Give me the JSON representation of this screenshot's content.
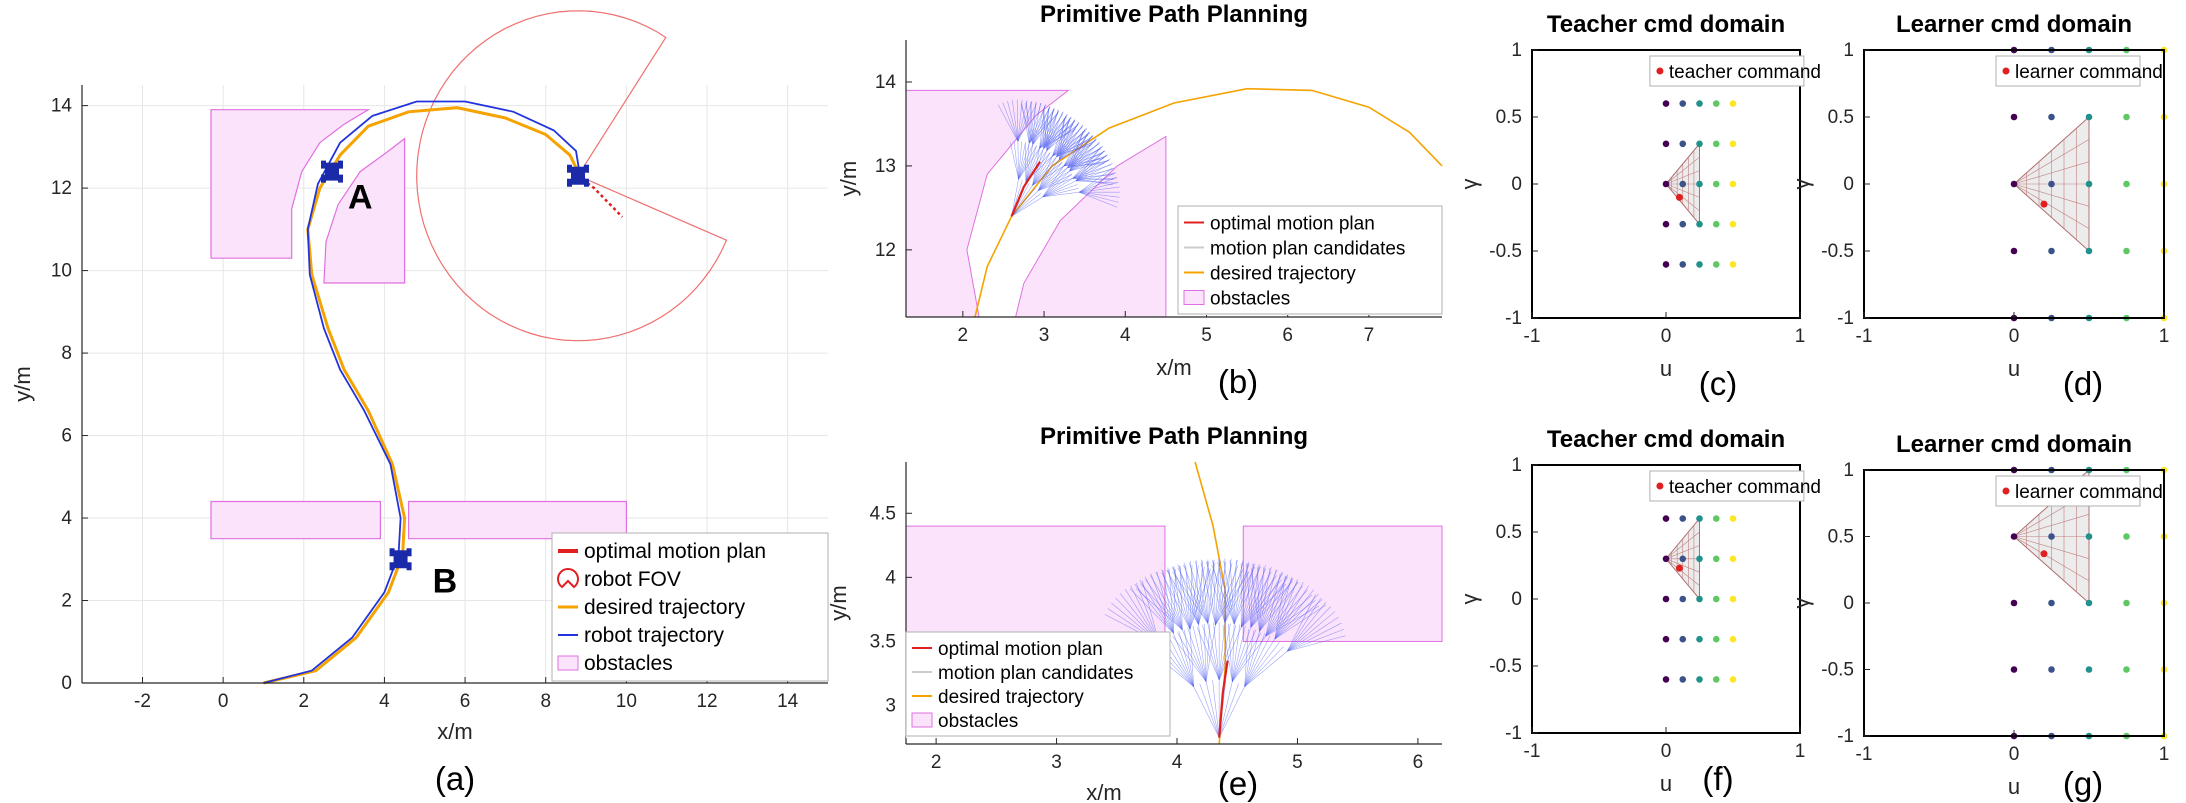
{
  "colors": {
    "obstacle_fill": "#fbe3fb",
    "obstacle_edge": "#e070e0",
    "desired": "#f5a300",
    "robot": "#2233dd",
    "optimal": "#e02020",
    "fov": "#f07070",
    "candidate": "#4d5bf0",
    "grid": "#e6e6e6",
    "axis": "#262626"
  },
  "chart_data": [
    {
      "id": "a",
      "type": "line",
      "caption": "(a)",
      "title": "",
      "xlabel": "x/m",
      "ylabel": "y/m",
      "xlim": [
        -3.5,
        15
      ],
      "ylim": [
        0,
        14.5
      ],
      "xticks": [
        "-2",
        "0",
        "2",
        "4",
        "6",
        "8",
        "10",
        "12",
        "14"
      ],
      "xtick_values": [
        -2,
        0,
        2,
        4,
        6,
        8,
        10,
        12,
        14
      ],
      "yticks": [
        "0",
        "2",
        "4",
        "6",
        "8",
        "10",
        "12",
        "14"
      ],
      "ytick_values": [
        0,
        2,
        4,
        6,
        8,
        10,
        12,
        14
      ],
      "grid": true,
      "annotations": [
        {
          "text": "A",
          "x": 3.4,
          "y": 11.5
        },
        {
          "text": "B",
          "x": 5.5,
          "y": 2.2
        }
      ],
      "robots": [
        {
          "x": 2.7,
          "y": 12.4
        },
        {
          "x": 8.8,
          "y": 12.3
        },
        {
          "x": 4.4,
          "y": 3.0
        }
      ],
      "legend": [
        "optimal motion plan",
        "robot FOV",
        "desired trajectory",
        "robot trajectory",
        "obstacles"
      ],
      "legend_position": "bottom-right"
    },
    {
      "id": "b",
      "type": "line",
      "caption": "(b)",
      "title": "Primitive Path Planning",
      "xlabel": "x/m",
      "ylabel": "y/m",
      "xlim": [
        1.3,
        7.9
      ],
      "ylim": [
        11.2,
        14.5
      ],
      "xticks": [
        "2",
        "3",
        "4",
        "5",
        "6",
        "7"
      ],
      "xtick_values": [
        2,
        3,
        4,
        5,
        6,
        7
      ],
      "yticks": [
        "12",
        "13",
        "14"
      ],
      "ytick_values": [
        12,
        13,
        14
      ],
      "legend": [
        "optimal motion plan",
        "motion plan candidates",
        "desired trajectory",
        "obstacles"
      ],
      "legend_position": "bottom-right"
    },
    {
      "id": "e",
      "type": "line",
      "caption": "(e)",
      "title": "Primitive Path Planning",
      "xlabel": "x/m",
      "ylabel": "y/m",
      "xlim": [
        1.75,
        6.2
      ],
      "ylim": [
        2.7,
        4.9
      ],
      "xticks": [
        "2",
        "3",
        "4",
        "5",
        "6"
      ],
      "xtick_values": [
        2,
        3,
        4,
        5,
        6
      ],
      "yticks": [
        "3",
        "3.5",
        "4",
        "4.5"
      ],
      "ytick_values": [
        3,
        3.5,
        4,
        4.5
      ],
      "legend": [
        "optimal motion plan",
        "motion plan candidates",
        "desired trajectory",
        "obstacles"
      ],
      "legend_position": "bottom-left"
    },
    {
      "id": "c",
      "type": "scatter",
      "caption": "(c)",
      "title": "Teacher cmd domain",
      "xlabel": "u",
      "ylabel": "γ",
      "xlim": [
        -1,
        1
      ],
      "ylim": [
        -1,
        1
      ],
      "xticks": [
        "-1",
        "0",
        "1"
      ],
      "xtick_values": [
        -1,
        0,
        1
      ],
      "yticks": [
        "-1",
        "-0.5",
        "0",
        "0.5",
        "1"
      ],
      "ytick_values": [
        -1,
        -0.5,
        0,
        0.5,
        1
      ],
      "grid_u": [
        0,
        0.125,
        0.25,
        0.375,
        0.5
      ],
      "grid_gamma": [
        -0.6,
        -0.3,
        0,
        0.3,
        0.6
      ],
      "highlight_center_gamma": 0,
      "command": {
        "u": 0.1,
        "gamma": -0.1
      },
      "legend": [
        "teacher command"
      ]
    },
    {
      "id": "d",
      "type": "scatter",
      "caption": "(d)",
      "title": "Learner cmd domain",
      "xlabel": "u",
      "ylabel": "γ",
      "xlim": [
        -1,
        1
      ],
      "ylim": [
        -1,
        1
      ],
      "xticks": [
        "-1",
        "0",
        "1"
      ],
      "xtick_values": [
        -1,
        0,
        1
      ],
      "yticks": [
        "-1",
        "-0.5",
        "0",
        "0.5",
        "1"
      ],
      "ytick_values": [
        -1,
        -0.5,
        0,
        0.5,
        1
      ],
      "grid_u": [
        0,
        0.25,
        0.5,
        0.75,
        1
      ],
      "grid_gamma": [
        -1,
        -0.5,
        0,
        0.5,
        1
      ],
      "highlight_center_gamma": 0,
      "command": {
        "u": 0.2,
        "gamma": -0.15
      },
      "legend": [
        "learner command"
      ]
    },
    {
      "id": "f",
      "type": "scatter",
      "caption": "(f)",
      "title": "Teacher cmd domain",
      "xlabel": "u",
      "ylabel": "γ",
      "xlim": [
        -1,
        1
      ],
      "ylim": [
        -1,
        1
      ],
      "xticks": [
        "-1",
        "0",
        "1"
      ],
      "xtick_values": [
        -1,
        0,
        1
      ],
      "yticks": [
        "-1",
        "-0.5",
        "0",
        "0.5",
        "1"
      ],
      "ytick_values": [
        -1,
        -0.5,
        0,
        0.5,
        1
      ],
      "grid_u": [
        0,
        0.125,
        0.25,
        0.375,
        0.5
      ],
      "grid_gamma": [
        -0.6,
        -0.3,
        0,
        0.3,
        0.6
      ],
      "highlight_center_gamma": 0.3,
      "command": {
        "u": 0.1,
        "gamma": 0.23
      },
      "legend": [
        "teacher command"
      ]
    },
    {
      "id": "g",
      "type": "scatter",
      "caption": "(g)",
      "title": "Learner cmd domain",
      "xlabel": "u",
      "ylabel": "γ",
      "xlim": [
        -1,
        1
      ],
      "ylim": [
        -1,
        1
      ],
      "xticks": [
        "-1",
        "0",
        "1"
      ],
      "xtick_values": [
        -1,
        0,
        1
      ],
      "yticks": [
        "-1",
        "-0.5",
        "0",
        "0.5",
        "1"
      ],
      "ytick_values": [
        -1,
        -0.5,
        0,
        0.5,
        1
      ],
      "grid_u": [
        0,
        0.25,
        0.5,
        0.75,
        1
      ],
      "grid_gamma": [
        -1,
        -0.5,
        0,
        0.5,
        1
      ],
      "highlight_center_gamma": 0.5,
      "command": {
        "u": 0.2,
        "gamma": 0.37
      },
      "legend": [
        "learner command"
      ]
    }
  ]
}
